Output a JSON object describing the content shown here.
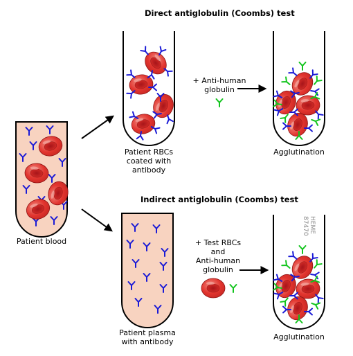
{
  "titles": {
    "direct": "Direct antiglobulin (Coombs) test",
    "indirect": "Indirect antiglobulin (Coombs) test"
  },
  "labels": {
    "patient_blood": "Patient blood",
    "coated_rbcs": [
      "Patient RBCs",
      "coated with",
      "antibody"
    ],
    "agglutination_top": "Agglutination",
    "patient_plasma": [
      "Patient plasma",
      "with antibody"
    ],
    "agglutination_bottom": "Agglutination"
  },
  "reagents": {
    "direct": [
      "+ Anti-human",
      "globulin"
    ],
    "indirect": [
      "+ Test RBCs",
      "and",
      "Anti-human",
      "globulin"
    ]
  },
  "watermark": "HEME 87470",
  "colors": {
    "tube_outline": "#000000",
    "plasma_fill": "#f8d3c0",
    "rbc_fill": "#e2352f",
    "rbc_center": "#b81d1c",
    "antibody": "#1a1ad6",
    "anti_human_globulin": "#12c41d",
    "arrow": "#000000"
  }
}
